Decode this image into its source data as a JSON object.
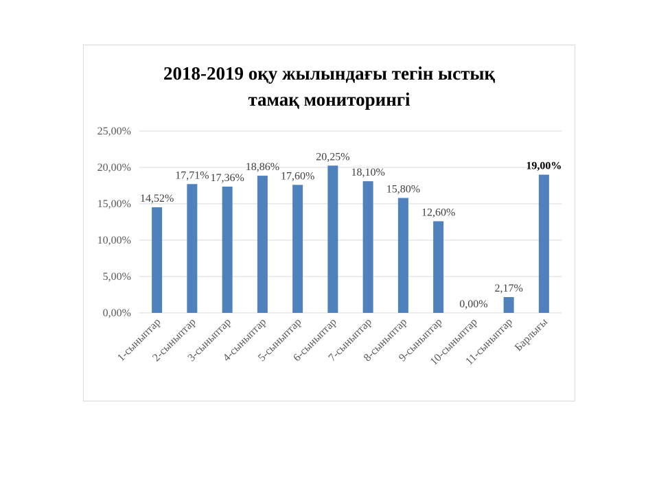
{
  "chart_data": {
    "type": "bar",
    "title": [
      "2018-2019 оқу жылындағы тегін ыстық",
      "тамақ мониторингі"
    ],
    "categories": [
      "1-сыныптар",
      "2-сыныптар",
      "3-сыныптар",
      "4-сыныптар",
      "5-сыныптар",
      "6-сыныптар",
      "7-сыныптар",
      "8-сыныптар",
      "9-сыныптар",
      "10-сыныптар",
      "11-сыныптар",
      "Барлығы"
    ],
    "values": [
      14.52,
      17.71,
      17.36,
      18.86,
      17.6,
      20.25,
      18.1,
      15.8,
      12.6,
      0.0,
      2.17,
      19.0
    ],
    "data_labels": [
      "14,52%",
      "17,71%",
      "17,36%",
      "18,86%",
      "17,60%",
      "20,25%",
      "18,10%",
      "15,80%",
      "12,60%",
      "0,00%",
      "2,17%",
      "19,00%"
    ],
    "bold_label_index": 11,
    "ylim": [
      0,
      25
    ],
    "yticks": [
      0,
      5,
      10,
      15,
      20,
      25
    ],
    "ytick_labels": [
      "0,00%",
      "5,00%",
      "10,00%",
      "15,00%",
      "20,00%",
      "25,00%"
    ],
    "grid": true,
    "legend": "none",
    "bar_color": "#4f81bd",
    "grid_color": "#d9d9d9"
  }
}
